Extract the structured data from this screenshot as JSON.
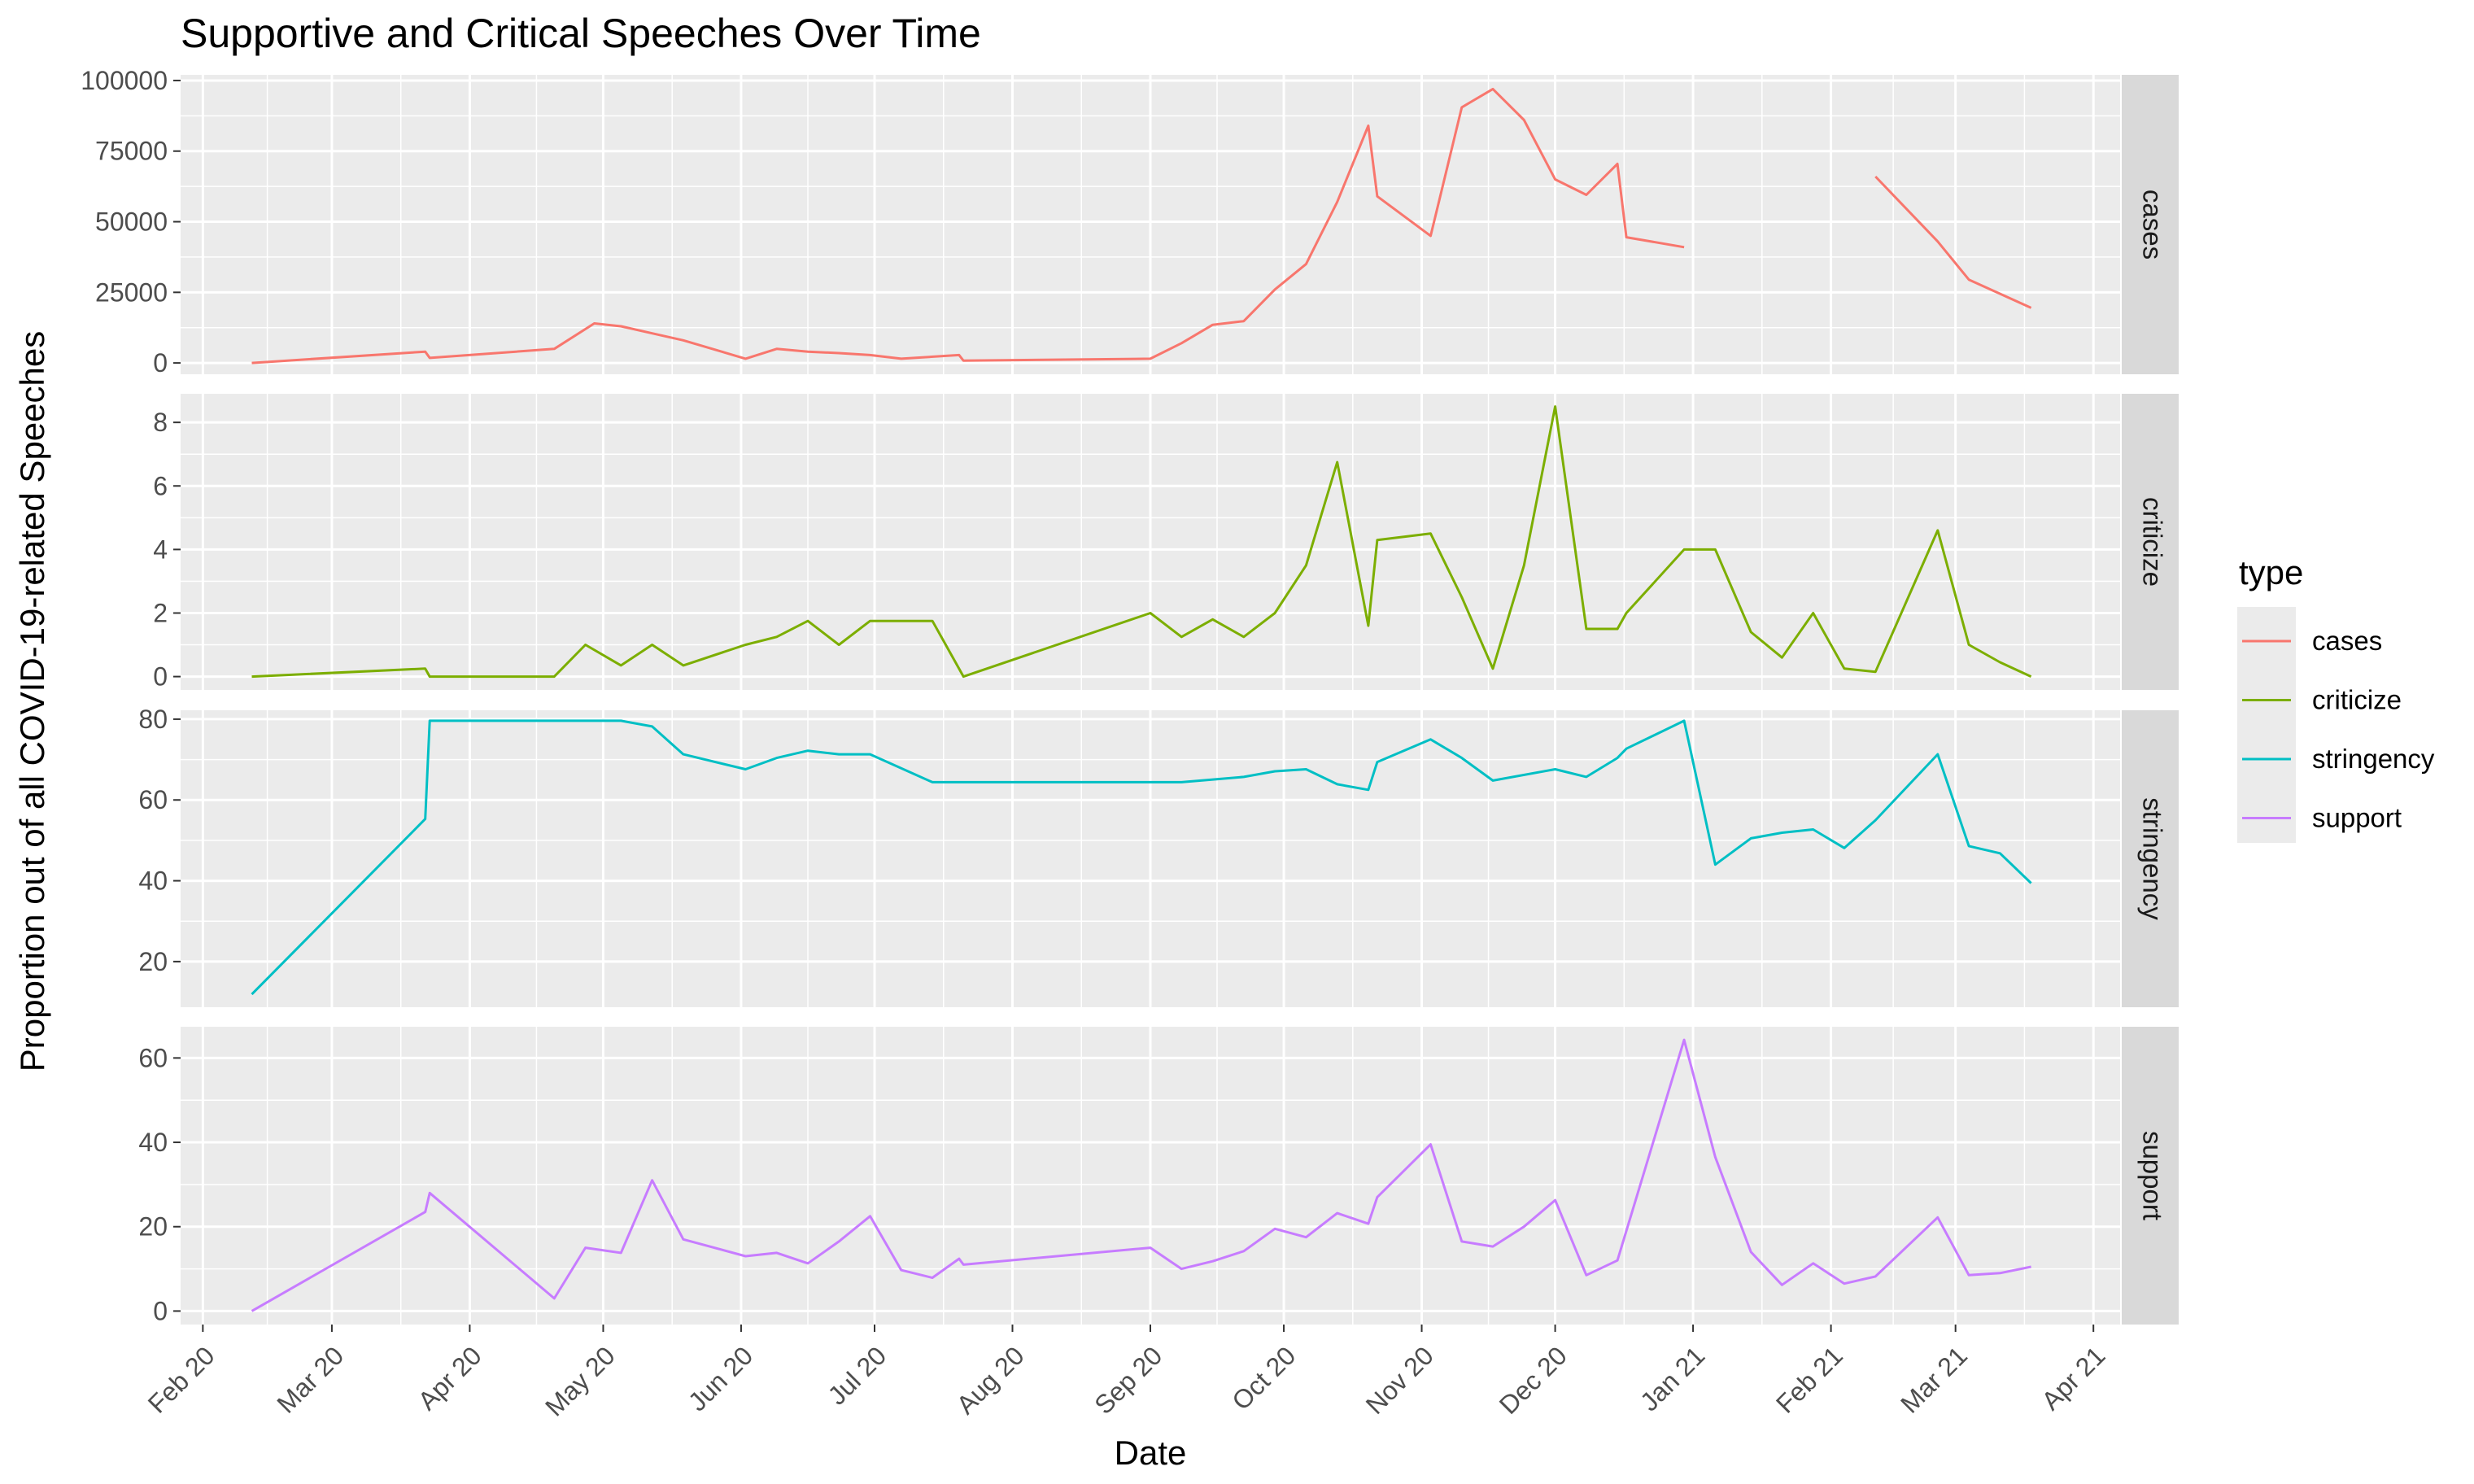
{
  "chart_data": {
    "type": "line",
    "title": "Supportive and Critical Speeches Over Time",
    "xlabel": "Date",
    "ylabel": "Proportion out of all COVID-19-related Speeches",
    "x_range": [
      "2020-01-27",
      "2021-04-07"
    ],
    "x_ticks": [
      {
        "date": "2020-02-01",
        "label": "Feb 20"
      },
      {
        "date": "2020-03-01",
        "label": "Mar 20"
      },
      {
        "date": "2020-04-01",
        "label": "Apr 20"
      },
      {
        "date": "2020-05-01",
        "label": "May 20"
      },
      {
        "date": "2020-06-01",
        "label": "Jun 20"
      },
      {
        "date": "2020-07-01",
        "label": "Jul 20"
      },
      {
        "date": "2020-08-01",
        "label": "Aug 20"
      },
      {
        "date": "2020-09-01",
        "label": "Sep 20"
      },
      {
        "date": "2020-10-01",
        "label": "Oct 20"
      },
      {
        "date": "2020-11-01",
        "label": "Nov 20"
      },
      {
        "date": "2020-12-01",
        "label": "Dec 20"
      },
      {
        "date": "2021-01-01",
        "label": "Jan 21"
      },
      {
        "date": "2021-02-01",
        "label": "Feb 21"
      },
      {
        "date": "2021-03-01",
        "label": "Mar 21"
      },
      {
        "date": "2021-04-01",
        "label": "Apr 21"
      }
    ],
    "grid": true,
    "legend": {
      "title": "type",
      "placement": "right",
      "entries": [
        "cases",
        "criticize",
        "stringency",
        "support"
      ]
    },
    "panels": [
      {
        "name": "cases",
        "color": "#F8766D",
        "ylim": [
          -4000,
          102000
        ],
        "y_ticks": [
          0,
          25000,
          50000,
          75000,
          100000
        ],
        "y_tick_labels": [
          "0",
          "25000",
          "50000",
          "75000",
          "100000"
        ],
        "points": [
          [
            "2020-02-12",
            0
          ],
          [
            "2020-03-22",
            4000
          ],
          [
            "2020-03-23",
            1800
          ],
          [
            "2020-04-20",
            5000
          ],
          [
            "2020-04-29",
            14000
          ],
          [
            "2020-05-05",
            13000
          ],
          [
            "2020-05-12",
            10500
          ],
          [
            "2020-05-19",
            8000
          ],
          [
            "2020-06-02",
            1500
          ],
          [
            "2020-06-09",
            5000
          ],
          [
            "2020-06-16",
            4000
          ],
          [
            "2020-06-23",
            3500
          ],
          [
            "2020-06-30",
            2800
          ],
          [
            "2020-07-07",
            1500
          ],
          [
            "2020-07-20",
            2800
          ],
          [
            "2020-07-21",
            800
          ],
          [
            "2020-09-01",
            1500
          ],
          [
            "2020-09-08",
            7000
          ],
          [
            "2020-09-15",
            13500
          ],
          [
            "2020-09-22",
            14800
          ],
          [
            "2020-09-29",
            26000
          ],
          [
            "2020-10-06",
            35000
          ],
          [
            "2020-10-13",
            57000
          ],
          [
            "2020-10-20",
            84000
          ],
          [
            "2020-10-22",
            59000
          ],
          [
            "2020-11-03",
            45000
          ],
          [
            "2020-11-10",
            90500
          ],
          [
            "2020-11-17",
            97000
          ],
          [
            "2020-11-24",
            86000
          ],
          [
            "2020-12-01",
            65000
          ],
          [
            "2020-12-08",
            59500
          ],
          [
            "2020-12-15",
            70500
          ],
          [
            "2020-12-17",
            44500
          ],
          [
            "2020-12-30",
            41000
          ],
          null,
          [
            "2021-02-11",
            66000
          ],
          [
            "2021-02-25",
            43000
          ],
          [
            "2021-03-04",
            29500
          ],
          [
            "2021-03-18",
            19500
          ]
        ]
      },
      {
        "name": "criticize",
        "color": "#7CAE00",
        "ylim": [
          -0.42,
          8.9
        ],
        "y_ticks": [
          0,
          2,
          4,
          6,
          8
        ],
        "y_tick_labels": [
          "0",
          "2",
          "4",
          "6",
          "8"
        ],
        "points": [
          [
            "2020-02-12",
            0
          ],
          [
            "2020-03-22",
            0.25
          ],
          [
            "2020-03-23",
            0
          ],
          [
            "2020-04-20",
            0
          ],
          [
            "2020-04-27",
            1
          ],
          [
            "2020-05-05",
            0.35
          ],
          [
            "2020-05-12",
            1
          ],
          [
            "2020-05-19",
            0.35
          ],
          [
            "2020-06-02",
            1
          ],
          [
            "2020-06-09",
            1.25
          ],
          [
            "2020-06-16",
            1.75
          ],
          [
            "2020-06-23",
            1
          ],
          [
            "2020-06-30",
            1.75
          ],
          [
            "2020-07-14",
            1.75
          ],
          [
            "2020-07-21",
            0
          ],
          [
            "2020-09-01",
            2
          ],
          [
            "2020-09-08",
            1.25
          ],
          [
            "2020-09-15",
            1.8
          ],
          [
            "2020-09-22",
            1.25
          ],
          [
            "2020-09-29",
            2
          ],
          [
            "2020-10-06",
            3.5
          ],
          [
            "2020-10-13",
            6.75
          ],
          [
            "2020-10-20",
            1.6
          ],
          [
            "2020-10-22",
            4.3
          ],
          [
            "2020-11-03",
            4.5
          ],
          [
            "2020-11-10",
            2.5
          ],
          [
            "2020-11-17",
            0.25
          ],
          [
            "2020-11-24",
            3.5
          ],
          [
            "2020-12-01",
            8.5
          ],
          [
            "2020-12-08",
            1.5
          ],
          [
            "2020-12-15",
            1.5
          ],
          [
            "2020-12-17",
            2
          ],
          [
            "2020-12-30",
            4
          ],
          [
            "2021-01-06",
            4
          ],
          [
            "2021-01-14",
            1.4
          ],
          [
            "2021-01-21",
            0.6
          ],
          [
            "2021-01-28",
            2
          ],
          [
            "2021-02-04",
            0.25
          ],
          [
            "2021-02-11",
            0.15
          ],
          [
            "2021-02-25",
            4.6
          ],
          [
            "2021-03-04",
            1
          ],
          [
            "2021-03-11",
            0.45
          ],
          [
            "2021-03-18",
            0
          ]
        ]
      },
      {
        "name": "stringency",
        "color": "#00BFC4",
        "ylim": [
          8.7,
          82.2
        ],
        "y_ticks": [
          20,
          40,
          60,
          80
        ],
        "y_tick_labels": [
          "20",
          "40",
          "60",
          "80"
        ],
        "points": [
          [
            "2020-02-12",
            11.9
          ],
          [
            "2020-03-22",
            55.3
          ],
          [
            "2020-03-23",
            79.6
          ],
          [
            "2020-05-05",
            79.6
          ],
          [
            "2020-05-12",
            78.2
          ],
          [
            "2020-05-19",
            71.3
          ],
          [
            "2020-06-02",
            67.6
          ],
          [
            "2020-06-09",
            70.4
          ],
          [
            "2020-06-16",
            72.2
          ],
          [
            "2020-06-23",
            71.3
          ],
          [
            "2020-06-30",
            71.3
          ],
          [
            "2020-07-14",
            64.4
          ],
          [
            "2020-09-08",
            64.4
          ],
          [
            "2020-09-22",
            65.7
          ],
          [
            "2020-09-29",
            67.1
          ],
          [
            "2020-10-06",
            67.6
          ],
          [
            "2020-10-13",
            63.9
          ],
          [
            "2020-10-20",
            62.5
          ],
          [
            "2020-10-22",
            69.4
          ],
          [
            "2020-11-03",
            75
          ],
          [
            "2020-11-10",
            70.4
          ],
          [
            "2020-11-17",
            64.8
          ],
          [
            "2020-12-01",
            67.6
          ],
          [
            "2020-12-08",
            65.7
          ],
          [
            "2020-12-15",
            70.4
          ],
          [
            "2020-12-17",
            72.7
          ],
          [
            "2020-12-30",
            79.6
          ],
          [
            "2021-01-06",
            44
          ],
          [
            "2021-01-14",
            50.5
          ],
          [
            "2021-01-21",
            51.9
          ],
          [
            "2021-01-28",
            52.7
          ],
          [
            "2021-02-04",
            48.1
          ],
          [
            "2021-02-11",
            55
          ],
          [
            "2021-02-25",
            71.3
          ],
          [
            "2021-03-04",
            48.6
          ],
          [
            "2021-03-11",
            46.8
          ],
          [
            "2021-03-18",
            39.4
          ]
        ]
      },
      {
        "name": "support",
        "color": "#C77CFF",
        "ylim": [
          -3.2,
          67.4
        ],
        "y_ticks": [
          0,
          20,
          40,
          60
        ],
        "y_tick_labels": [
          "0",
          "20",
          "40",
          "60"
        ],
        "points": [
          [
            "2020-02-12",
            0
          ],
          [
            "2020-03-22",
            23.5
          ],
          [
            "2020-03-23",
            28
          ],
          [
            "2020-04-20",
            3
          ],
          [
            "2020-04-27",
            15
          ],
          [
            "2020-05-05",
            13.8
          ],
          [
            "2020-05-12",
            31
          ],
          [
            "2020-05-19",
            17
          ],
          [
            "2020-06-02",
            13
          ],
          [
            "2020-06-09",
            13.8
          ],
          [
            "2020-06-16",
            11.3
          ],
          [
            "2020-06-23",
            16.5
          ],
          [
            "2020-06-30",
            22.5
          ],
          [
            "2020-07-07",
            9.7
          ],
          [
            "2020-07-14",
            7.9
          ],
          [
            "2020-07-20",
            12.4
          ],
          [
            "2020-07-21",
            11
          ],
          [
            "2020-09-01",
            15
          ],
          [
            "2020-09-08",
            10
          ],
          [
            "2020-09-15",
            11.8
          ],
          [
            "2020-09-22",
            14.2
          ],
          [
            "2020-09-29",
            19.5
          ],
          [
            "2020-10-06",
            17.5
          ],
          [
            "2020-10-13",
            23.2
          ],
          [
            "2020-10-20",
            20.7
          ],
          [
            "2020-10-22",
            27
          ],
          [
            "2020-11-03",
            39.5
          ],
          [
            "2020-11-10",
            16.5
          ],
          [
            "2020-11-17",
            15.3
          ],
          [
            "2020-11-24",
            20
          ],
          [
            "2020-12-01",
            26.3
          ],
          [
            "2020-12-08",
            8.5
          ],
          [
            "2020-12-15",
            12
          ],
          [
            "2020-12-30",
            64.3
          ],
          [
            "2021-01-06",
            36.5
          ],
          [
            "2021-01-14",
            14
          ],
          [
            "2021-01-21",
            6.2
          ],
          [
            "2021-01-28",
            11.3
          ],
          [
            "2021-02-04",
            6.5
          ],
          [
            "2021-02-11",
            8.2
          ],
          [
            "2021-02-25",
            22.2
          ],
          [
            "2021-03-04",
            8.5
          ],
          [
            "2021-03-11",
            9
          ],
          [
            "2021-03-18",
            10.5
          ]
        ]
      }
    ]
  }
}
